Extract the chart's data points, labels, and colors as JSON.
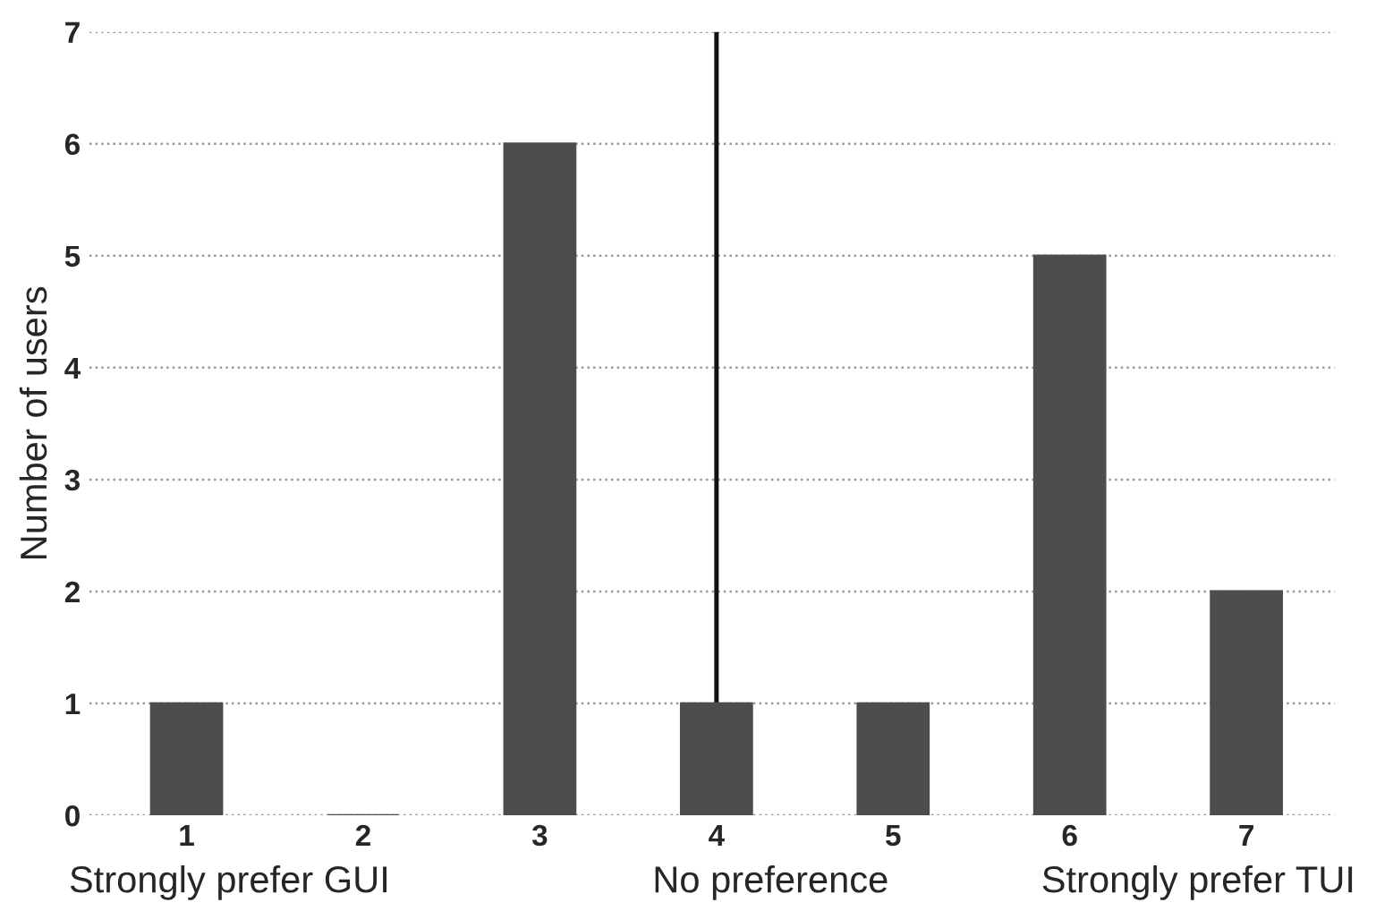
{
  "chart_data": {
    "type": "bar",
    "ylabel": "Number of users",
    "x": [
      1,
      2,
      3,
      4,
      5,
      6,
      7
    ],
    "values": [
      1,
      0,
      6,
      1,
      1,
      5,
      2
    ],
    "color": "#4d4d4d",
    "xlim": [
      0.45,
      7.5
    ],
    "xticks": [
      1,
      2,
      3,
      4,
      5,
      6,
      7
    ],
    "ylim": [
      0,
      7
    ],
    "yticks": [
      0,
      1,
      2,
      3,
      4,
      5,
      6,
      7
    ],
    "grid": "y",
    "ref_lines": [
      {
        "axis": "x",
        "value": 4,
        "color": "#111111",
        "line_style": "solid"
      }
    ],
    "annotations": [
      "Strongly prefer GUI",
      "No preference",
      "Strongly prefer TUI"
    ]
  }
}
